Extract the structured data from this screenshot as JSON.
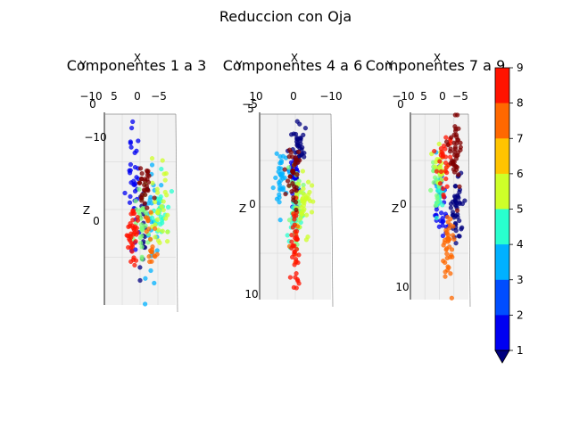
{
  "figure": {
    "title": "Reduccion con Oja"
  },
  "colorbar": {
    "levels": [
      1,
      2,
      3,
      4,
      5,
      6,
      7,
      8,
      9
    ],
    "tick_labels": [
      "1",
      "2",
      "3",
      "4",
      "5",
      "6",
      "7",
      "8",
      "9"
    ],
    "colors": [
      "#00007f",
      "#0000f1",
      "#004dff",
      "#00b1ff",
      "#29ffce",
      "#7dff7a",
      "#ceff29",
      "#ffc400",
      "#ff6800",
      "#ff1300",
      "#7f0000"
    ]
  },
  "chart_data": [
    {
      "type": "scatter",
      "title": "Componentes 1 a 3",
      "xlabel": "X",
      "ylabel": "Y",
      "zlabel": "Z",
      "x_ticks": [
        "−10",
        "5",
        "0",
        "−5"
      ],
      "y_ticks": [
        "0"
      ],
      "z_ticks": [
        "−10",
        "0"
      ],
      "x_range": [
        -12,
        8
      ],
      "z_range": [
        -12,
        12
      ],
      "clusters": [
        {
          "cls": 1,
          "x": -1,
          "z": 3,
          "sx": 0.8,
          "sz": 3,
          "n": 20
        },
        {
          "cls": 2,
          "x": -4,
          "z": -4,
          "sx": 1.1,
          "sz": 3.5,
          "n": 35
        },
        {
          "cls": 3,
          "x": 1.5,
          "z": 1,
          "sx": 1.1,
          "sz": 4,
          "n": 25
        },
        {
          "cls": 4,
          "x": 4.5,
          "z": 0,
          "sx": 1.3,
          "sz": 1.8,
          "n": 30
        },
        {
          "cls": 5,
          "x": -1.5,
          "z": 1.5,
          "sx": 1.2,
          "sz": 2,
          "n": 35
        },
        {
          "cls": 6,
          "x": 4,
          "z": -1,
          "sx": 1.6,
          "sz": 3,
          "n": 30
        },
        {
          "cls": 7,
          "x": 1,
          "z": 5,
          "sx": 1.6,
          "sz": 2,
          "n": 20
        },
        {
          "cls": 8,
          "x": -4.5,
          "z": 3,
          "sx": 1.2,
          "sz": 2,
          "n": 40
        },
        {
          "cls": 9,
          "x": -0.5,
          "z": -3,
          "sx": 0.9,
          "sz": 1.6,
          "n": 30
        }
      ]
    },
    {
      "type": "scatter",
      "title": "Componentes 4 a 6",
      "xlabel": "X",
      "ylabel": "Y",
      "zlabel": "Z",
      "x_ticks": [
        "10",
        "0",
        "−10"
      ],
      "y_ticks": [
        "−5",
        "5"
      ],
      "z_ticks": [
        "0",
        "10"
      ],
      "x_range": [
        -15,
        15
      ],
      "z_range": [
        -10,
        12
      ],
      "clusters": [
        {
          "cls": 1,
          "x": 1.5,
          "z": -6,
          "sx": 1.8,
          "sz": 2.2,
          "n": 35
        },
        {
          "cls": 2,
          "x": -0.5,
          "z": -3,
          "sx": 1.3,
          "sz": 1.6,
          "n": 30
        },
        {
          "cls": 3,
          "x": -6.5,
          "z": -2,
          "sx": 1.5,
          "sz": 2.2,
          "n": 35
        },
        {
          "cls": 4,
          "x": 0,
          "z": 2.5,
          "sx": 1.5,
          "sz": 1.8,
          "n": 35
        },
        {
          "cls": 5,
          "x": 1,
          "z": 0,
          "sx": 1.8,
          "sz": 2.2,
          "n": 30
        },
        {
          "cls": 6,
          "x": 4,
          "z": 0.5,
          "sx": 2.3,
          "sz": 1.6,
          "n": 40
        },
        {
          "cls": 7,
          "x": -0.5,
          "z": 5.5,
          "sx": 1.5,
          "sz": 2,
          "n": 5
        },
        {
          "cls": 8,
          "x": 0,
          "z": 6,
          "sx": 1,
          "sz": 2.5,
          "n": 40
        },
        {
          "cls": 9,
          "x": -1.5,
          "z": -3,
          "sx": 1.8,
          "sz": 1.8,
          "n": 35
        }
      ]
    },
    {
      "type": "scatter",
      "title": "Componentes 7 a 9",
      "xlabel": "X",
      "ylabel": "Y",
      "zlabel": "Z",
      "x_ticks": [
        "−10",
        "5",
        "0",
        "−5"
      ],
      "y_ticks": [
        "0"
      ],
      "z_ticks": [
        "0",
        "10"
      ],
      "x_range": [
        -12,
        8
      ],
      "z_range": [
        -10,
        12
      ],
      "clusters": [
        {
          "cls": 1,
          "x": 4.5,
          "z": 1.5,
          "sx": 1.3,
          "sz": 2.2,
          "n": 45
        },
        {
          "cls": 2,
          "x": -1.5,
          "z": 0.5,
          "sx": 1.2,
          "sz": 2,
          "n": 35
        },
        {
          "cls": 3,
          "x": -2,
          "z": -1.5,
          "sx": 1,
          "sz": 1.6,
          "n": 15
        },
        {
          "cls": 4,
          "x": -2,
          "z": 0,
          "sx": 0.9,
          "sz": 1.2,
          "n": 15
        },
        {
          "cls": 5,
          "x": -3,
          "z": -3,
          "sx": 1,
          "sz": 1.5,
          "n": 20
        },
        {
          "cls": 6,
          "x": -2,
          "z": -4,
          "sx": 1,
          "sz": 1.2,
          "n": 20
        },
        {
          "cls": 7,
          "x": 1.5,
          "z": 6,
          "sx": 1,
          "sz": 2.2,
          "n": 40
        },
        {
          "cls": 8,
          "x": 0,
          "z": -4,
          "sx": 1.2,
          "sz": 2,
          "n": 30
        },
        {
          "cls": 9,
          "x": 4,
          "z": -6,
          "sx": 1.3,
          "sz": 2,
          "n": 45
        }
      ]
    }
  ]
}
